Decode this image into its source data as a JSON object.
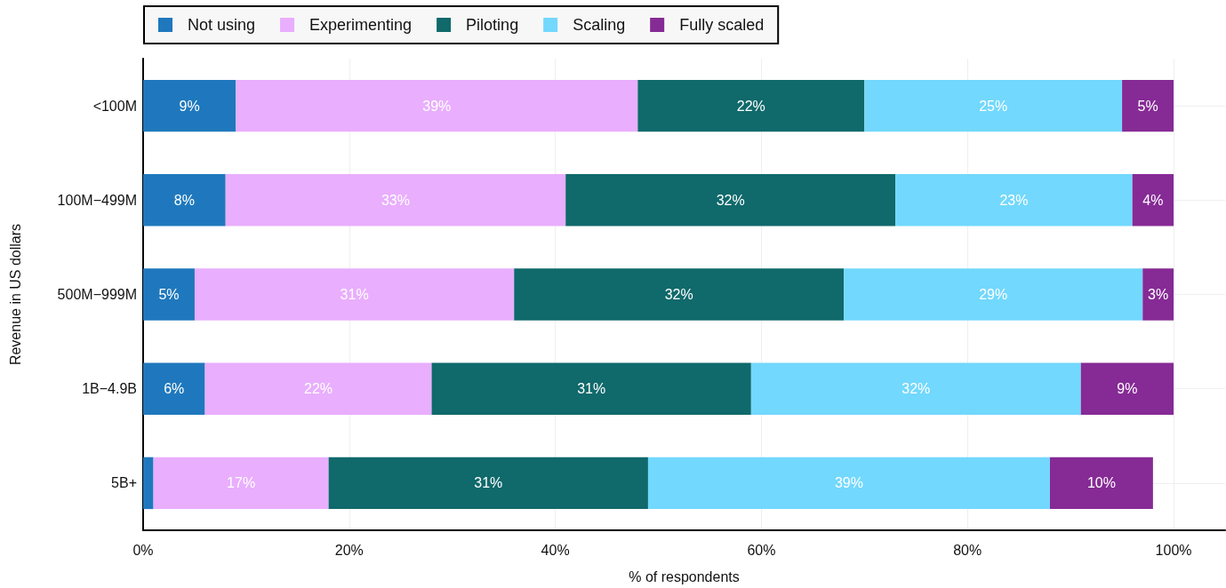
{
  "chart_data": {
    "type": "bar",
    "orientation": "horizontal",
    "stacked": true,
    "xlabel": "% of respondents",
    "ylabel": "Revenue in US dollars",
    "categories": [
      "<100M",
      "100M−499M",
      "500M−999M",
      "1B−4.9B",
      "5B+"
    ],
    "series": [
      {
        "name": "Not using",
        "color": "#1f78bd",
        "values": [
          9,
          8,
          5,
          6,
          1
        ],
        "value_labels": [
          "9%",
          "8%",
          "5%",
          "6%",
          null
        ]
      },
      {
        "name": "Experimenting",
        "color": "#e9aefd",
        "values": [
          39,
          33,
          31,
          22,
          17
        ],
        "value_labels": [
          "39%",
          "33%",
          "31%",
          "22%",
          "17%"
        ]
      },
      {
        "name": "Piloting",
        "color": "#10696b",
        "values": [
          22,
          32,
          32,
          31,
          31
        ],
        "value_labels": [
          "22%",
          "32%",
          "32%",
          "31%",
          "31%"
        ]
      },
      {
        "name": "Scaling",
        "color": "#72d8fd",
        "values": [
          25,
          23,
          29,
          32,
          39
        ],
        "value_labels": [
          "25%",
          "23%",
          "29%",
          "32%",
          "39%"
        ]
      },
      {
        "name": "Fully scaled",
        "color": "#862a95",
        "values": [
          5,
          4,
          3,
          9,
          10
        ],
        "value_labels": [
          "5%",
          "4%",
          "3%",
          "9%",
          "10%"
        ]
      }
    ],
    "xlim": [
      0,
      105
    ],
    "xticks": [
      {
        "value": 0,
        "label": "0%"
      },
      {
        "value": 20,
        "label": "20%"
      },
      {
        "value": 40,
        "label": "40%"
      },
      {
        "value": 60,
        "label": "60%"
      },
      {
        "value": 80,
        "label": "80%"
      },
      {
        "value": 100,
        "label": "100%"
      }
    ],
    "grid": true,
    "legend": "top left"
  }
}
